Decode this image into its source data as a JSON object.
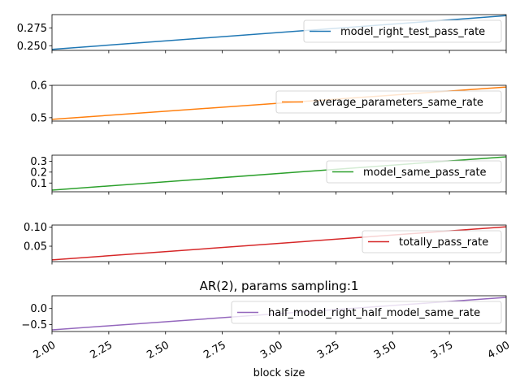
{
  "chart_data": [
    {
      "type": "line",
      "title": "",
      "xlabel": "",
      "x": [
        2.0,
        4.0
      ],
      "xlim": [
        2.0,
        4.0
      ],
      "ylim": [
        0.2435,
        0.2935
      ],
      "yticks": [
        {
          "value": 0.25,
          "label": "0.250"
        },
        {
          "value": 0.275,
          "label": "0.275"
        }
      ],
      "legend": "right",
      "series": [
        {
          "name": "model_right_test_pass_rate",
          "color": "#1f77b4",
          "values": [
            0.245,
            0.292
          ]
        }
      ]
    },
    {
      "type": "line",
      "title": "",
      "xlabel": "",
      "x": [
        2.0,
        4.0
      ],
      "xlim": [
        2.0,
        4.0
      ],
      "ylim": [
        0.4896,
        0.6003
      ],
      "yticks": [
        {
          "value": 0.5,
          "label": "0.5"
        },
        {
          "value": 0.6,
          "label": "0.6"
        }
      ],
      "legend": "right",
      "series": [
        {
          "name": "average_parameters_same_rate",
          "color": "#ff7f0e",
          "values": [
            0.495,
            0.595
          ]
        }
      ]
    },
    {
      "type": "line",
      "title": "",
      "xlabel": "",
      "x": [
        2.0,
        4.0
      ],
      "xlim": [
        2.0,
        4.0
      ],
      "ylim": [
        0.02,
        0.355
      ],
      "yticks": [
        {
          "value": 0.1,
          "label": "0.1"
        },
        {
          "value": 0.2,
          "label": "0.2"
        },
        {
          "value": 0.3,
          "label": "0.3"
        }
      ],
      "legend": "right",
      "series": [
        {
          "name": "model_same_pass_rate",
          "color": "#2ca02c",
          "values": [
            0.035,
            0.34
          ]
        }
      ]
    },
    {
      "type": "line",
      "title": "",
      "xlabel": "",
      "x": [
        2.0,
        4.0
      ],
      "xlim": [
        2.0,
        4.0
      ],
      "ylim": [
        0.0095,
        0.1055
      ],
      "yticks": [
        {
          "value": 0.05,
          "label": "0.05"
        },
        {
          "value": 0.1,
          "label": "0.10"
        }
      ],
      "legend": "right",
      "series": [
        {
          "name": "totally_pass_rate",
          "color": "#d62728",
          "values": [
            0.014,
            0.101
          ]
        }
      ]
    },
    {
      "type": "line",
      "title": "AR(2), params sampling:1",
      "xlabel": "block size",
      "x": [
        2.0,
        4.0
      ],
      "xlim": [
        2.0,
        4.0
      ],
      "ylim": [
        -0.72,
        0.4
      ],
      "yticks": [
        {
          "value": -0.5,
          "label": "−0.5"
        },
        {
          "value": 0.0,
          "label": "0.0"
        }
      ],
      "xticks": [
        {
          "value": 2.0,
          "label": "2.00"
        },
        {
          "value": 2.25,
          "label": "2.25"
        },
        {
          "value": 2.5,
          "label": "2.50"
        },
        {
          "value": 2.75,
          "label": "2.75"
        },
        {
          "value": 3.0,
          "label": "3.00"
        },
        {
          "value": 3.25,
          "label": "3.25"
        },
        {
          "value": 3.5,
          "label": "3.50"
        },
        {
          "value": 3.75,
          "label": "3.75"
        },
        {
          "value": 4.0,
          "label": "4.00"
        }
      ],
      "legend": "lower right",
      "series": [
        {
          "name": "half_model_right_half_model_same_rate",
          "color": "#9467bd",
          "values": [
            -0.67,
            0.35
          ]
        }
      ]
    }
  ]
}
